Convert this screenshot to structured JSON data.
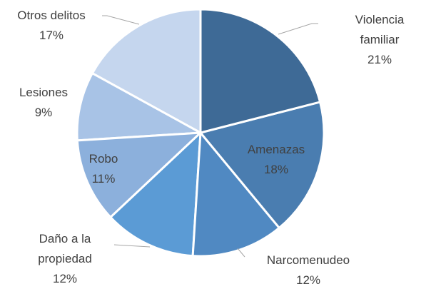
{
  "chart_data": {
    "type": "pie",
    "categories": [
      "Violencia familiar",
      "Amenazas",
      "Narcomenudeo",
      "Daño a la propiedad",
      "Robo",
      "Lesiones",
      "Otros delitos"
    ],
    "values": [
      21,
      18,
      12,
      12,
      11,
      9,
      17
    ],
    "value_labels": [
      "21%",
      "18%",
      "12%",
      "12%",
      "11%",
      "9%",
      "17%"
    ],
    "colors": [
      "#3e6a96",
      "#4a7db0",
      "#5089c2",
      "#5b9bd5",
      "#8cb0dc",
      "#a8c3e6",
      "#c5d6ee"
    ]
  }
}
